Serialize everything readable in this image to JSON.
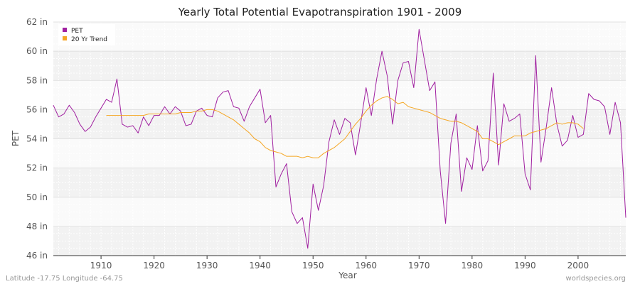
{
  "chart_data": {
    "type": "line",
    "title": "Yearly Total Potential Evapotranspiration 1901 - 2009",
    "xlabel": "Year",
    "ylabel": "PET",
    "xlim": [
      1901,
      2009
    ],
    "ylim": [
      46,
      62
    ],
    "x_ticks": [
      1910,
      1920,
      1930,
      1940,
      1950,
      1960,
      1970,
      1980,
      1990,
      2000
    ],
    "y_ticks": [
      {
        "value": 46,
        "label": "46 in"
      },
      {
        "value": 48,
        "label": "48 in"
      },
      {
        "value": 50,
        "label": "50 in"
      },
      {
        "value": 52,
        "label": "52 in"
      },
      {
        "value": 54,
        "label": "54 in"
      },
      {
        "value": 56,
        "label": "56 in"
      },
      {
        "value": 58,
        "label": "58 in"
      },
      {
        "value": 60,
        "label": "60 in"
      },
      {
        "value": 62,
        "label": "62 in"
      }
    ],
    "grid": true,
    "legend_position": "top-left",
    "series": [
      {
        "name": "PET",
        "color": "#a020a0",
        "x_start": 1901,
        "values": [
          56.3,
          55.5,
          55.7,
          56.3,
          55.8,
          55.0,
          54.5,
          54.8,
          55.5,
          56.1,
          56.7,
          56.5,
          58.1,
          55.0,
          54.8,
          54.9,
          54.4,
          55.5,
          54.9,
          55.6,
          55.6,
          56.2,
          55.7,
          56.2,
          55.9,
          54.9,
          55.0,
          55.9,
          56.1,
          55.6,
          55.5,
          56.8,
          57.2,
          57.3,
          56.2,
          56.1,
          55.2,
          56.2,
          56.8,
          57.4,
          55.1,
          55.6,
          50.7,
          51.6,
          52.3,
          49.0,
          48.2,
          48.6,
          46.5,
          50.9,
          49.1,
          50.8,
          53.8,
          55.3,
          54.3,
          55.4,
          55.1,
          52.9,
          55.1,
          57.5,
          55.6,
          58.1,
          60.0,
          58.3,
          55.0,
          58.0,
          59.2,
          59.3,
          57.5,
          61.5,
          59.4,
          57.3,
          57.9,
          51.8,
          48.2,
          53.7,
          55.7,
          50.4,
          52.7,
          51.9,
          54.9,
          51.8,
          52.5,
          58.5,
          52.2,
          56.4,
          55.2,
          55.4,
          55.7,
          51.6,
          50.5,
          59.7,
          52.4,
          54.8,
          57.5,
          55.0,
          53.5,
          53.9,
          55.6,
          54.1,
          54.3,
          57.1,
          56.7,
          56.6,
          56.2,
          54.3,
          56.5,
          55.1,
          48.6
        ]
      },
      {
        "name": "20 Yr Trend",
        "color": "#f5a623",
        "x_start": 1911,
        "values": [
          55.6,
          55.6,
          55.6,
          55.6,
          55.6,
          55.6,
          55.6,
          55.6,
          55.7,
          55.7,
          55.7,
          55.7,
          55.7,
          55.7,
          55.8,
          55.8,
          55.8,
          55.9,
          55.9,
          56.0,
          56.0,
          55.9,
          55.7,
          55.5,
          55.3,
          55.0,
          54.7,
          54.4,
          54.0,
          53.8,
          53.4,
          53.2,
          53.1,
          53.0,
          52.8,
          52.8,
          52.8,
          52.7,
          52.8,
          52.7,
          52.7,
          53.0,
          53.2,
          53.4,
          53.7,
          54.0,
          54.5,
          55.0,
          55.4,
          55.9,
          56.3,
          56.6,
          56.8,
          56.9,
          56.7,
          56.4,
          56.5,
          56.2,
          56.1,
          56.0,
          55.9,
          55.8,
          55.6,
          55.4,
          55.3,
          55.2,
          55.2,
          55.1,
          54.9,
          54.7,
          54.5,
          54.0,
          54.0,
          53.8,
          53.6,
          53.8,
          54.0,
          54.2,
          54.2,
          54.2,
          54.4,
          54.5,
          54.6,
          54.7,
          54.9,
          55.1,
          55.0,
          55.1,
          55.1,
          55.0,
          54.7
        ]
      }
    ]
  },
  "footer": {
    "left": "Latitude -17.75 Longitude -64.75",
    "right": "worldspecies.org"
  }
}
